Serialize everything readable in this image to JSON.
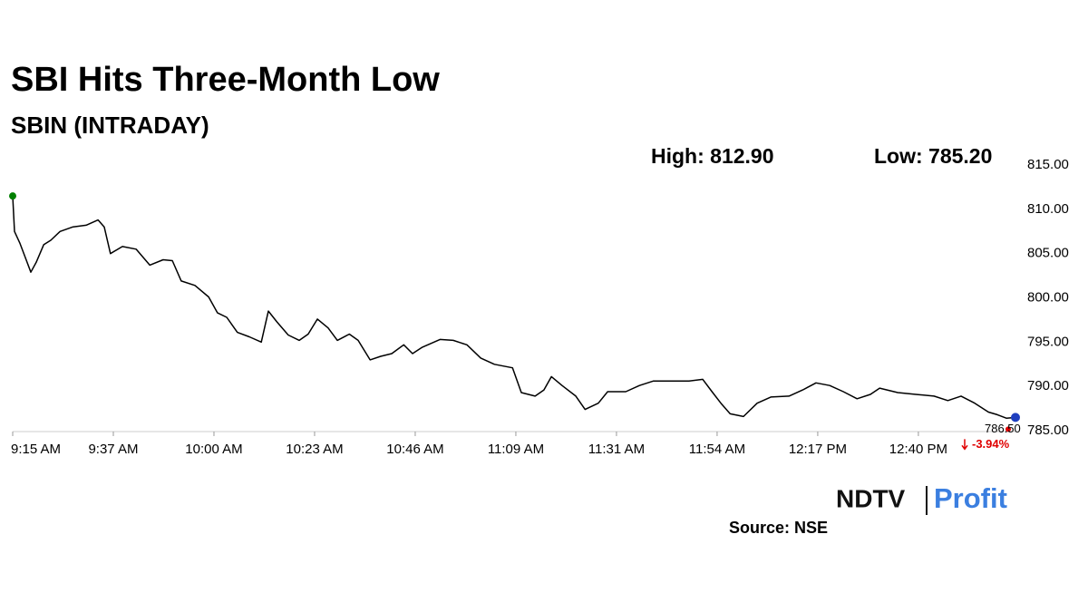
{
  "chart_data": {
    "type": "line",
    "title": "SBI Hits Three-Month Low",
    "subtitle": "SBIN (INTRADAY)",
    "high_label": "High: 812.90",
    "low_label": "Low: 785.20",
    "change_label": "-3.94%",
    "source": "Source: NSE",
    "logo": [
      "NDTV",
      "Profit"
    ],
    "x": [
      555,
      555.4,
      556.6,
      557.9,
      559.1,
      560.3,
      562,
      563.6,
      565.7,
      568.5,
      571.6,
      574.3,
      575.7,
      577.1,
      579.8,
      582.9,
      586,
      589,
      591.1,
      593.1,
      596.2,
      599.3,
      601.3,
      603.4,
      605.8,
      608.5,
      611.2,
      612.8,
      614.7,
      617.3,
      619.8,
      621.8,
      623.9,
      626.3,
      628.4,
      631.1,
      633.1,
      635.8,
      638.2,
      640.7,
      643.4,
      645.4,
      647.5,
      651.6,
      654.6,
      657.7,
      660.8,
      663.9,
      668,
      670,
      673.1,
      675.1,
      676.8,
      679.2,
      682.3,
      684.4,
      687.4,
      689.5,
      693.6,
      696.7,
      699.8,
      703.8,
      707.9,
      711,
      713.1,
      715.1,
      717.2,
      720.2,
      723.3,
      726.4,
      730.5,
      733.6,
      736.6,
      739.7,
      742.8,
      745.9,
      748.9,
      751,
      755.1,
      759.2,
      763.3,
      766.4,
      769.4,
      772.5,
      775.6,
      777.6,
      779.7,
      781.7
    ],
    "series": [
      {
        "name": "SBIN",
        "color": "#000000",
        "values": [
          811.5,
          807.5,
          806.2,
          804.5,
          802.9,
          804,
          806,
          806.5,
          807.5,
          808,
          808.2,
          808.8,
          808,
          805,
          805.8,
          805.5,
          803.7,
          804.3,
          804.2,
          801.9,
          801.4,
          800.1,
          798.3,
          797.8,
          796.1,
          795.6,
          795,
          798.5,
          797.3,
          795.8,
          795.2,
          795.9,
          797.6,
          796.6,
          795.2,
          795.9,
          795.2,
          793,
          793.4,
          793.7,
          794.7,
          793.7,
          794.4,
          795.3,
          795.2,
          794.7,
          793.2,
          792.5,
          792.1,
          789.3,
          788.9,
          789.6,
          791.1,
          790.1,
          788.9,
          787.4,
          788.1,
          789.4,
          789.4,
          790.1,
          790.6,
          790.6,
          790.6,
          790.8,
          789.4,
          788.1,
          786.9,
          786.6,
          788.1,
          788.8,
          788.9,
          789.6,
          790.4,
          790.1,
          789.4,
          788.6,
          789.1,
          789.8,
          789.3,
          789.1,
          788.9,
          788.4,
          788.9,
          788.1,
          787.1,
          786.8,
          786.4,
          786.5
        ],
        "value_labels": [
          null,
          null,
          null,
          null,
          null,
          null,
          null,
          null,
          null,
          null,
          null,
          null,
          null,
          null,
          null,
          null,
          null,
          null,
          null,
          null,
          null,
          null,
          null,
          null,
          null,
          null,
          null,
          null,
          null,
          null,
          null,
          null,
          null,
          null,
          null,
          null,
          null,
          null,
          null,
          null,
          null,
          null,
          null,
          null,
          null,
          null,
          null,
          null,
          null,
          null,
          null,
          null,
          null,
          null,
          null,
          null,
          null,
          null,
          null,
          null,
          null,
          null,
          null,
          null,
          null,
          null,
          null,
          null,
          null,
          null,
          null,
          null,
          null,
          null,
          null,
          null,
          null,
          null,
          null,
          null,
          null,
          null,
          null,
          null,
          null,
          null,
          null,
          "786.50"
        ]
      }
    ],
    "xlim": [
      555,
      781.7
    ],
    "xticks": [
      {
        "value": 555,
        "label": "9:15 AM"
      },
      {
        "value": 577.75,
        "label": "9:37 AM"
      },
      {
        "value": 600.5,
        "label": "10:00 AM"
      },
      {
        "value": 623.25,
        "label": "10:23 AM"
      },
      {
        "value": 646,
        "label": "10:46 AM"
      },
      {
        "value": 668.75,
        "label": "11:09 AM"
      },
      {
        "value": 691.5,
        "label": "11:31 AM"
      },
      {
        "value": 714.25,
        "label": "11:54 AM"
      },
      {
        "value": 737,
        "label": "12:17 PM"
      },
      {
        "value": 759.75,
        "label": "12:40 PM"
      }
    ],
    "ylim": [
      785,
      815
    ],
    "yticks": [
      {
        "value": 785,
        "label": "785.00"
      },
      {
        "value": 790,
        "label": "790.00"
      },
      {
        "value": 795,
        "label": "795.00"
      },
      {
        "value": 800,
        "label": "800.00"
      },
      {
        "value": 805,
        "label": "805.00"
      },
      {
        "value": 810,
        "label": "810.00"
      },
      {
        "value": 815,
        "label": "815.00"
      }
    ],
    "start_color": "#008000",
    "end_color": "#1f3fbf",
    "down_color": "#e00000"
  }
}
